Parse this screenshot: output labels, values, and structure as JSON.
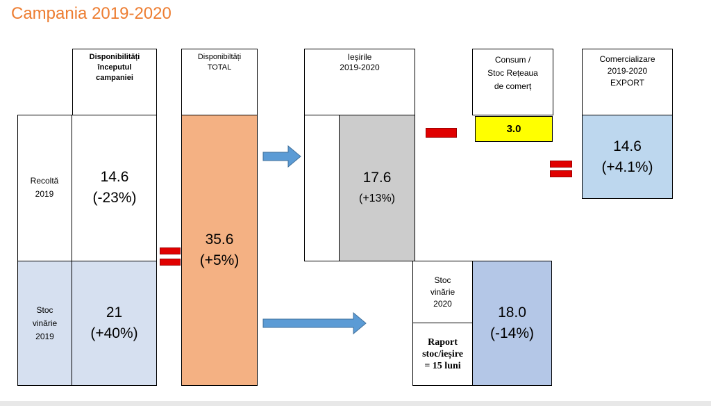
{
  "title": "Campania 2019-2020",
  "colors": {
    "title": "#ed7d31",
    "stock_blue": "#d6e0f0",
    "total_orange": "#f4b183",
    "outflow_gray": "#cccccc",
    "consumption_yellow": "#ffff00",
    "export_blue": "#bdd7ee",
    "stock2020_blue": "#b4c7e7",
    "arrow_blue": "#5b9bd5",
    "operator_red": "#e00000"
  },
  "headers": {
    "availability_start": [
      "Disponibilități",
      "începutul",
      "campaniei"
    ],
    "availability_total": [
      "Disponibiltăți",
      "TOTAL"
    ],
    "outflows": [
      "Ieșirile",
      "2019-2020"
    ],
    "consumption": [
      "Consum /",
      "Stoc Rețeaua",
      "de comerț"
    ],
    "export": [
      "Comercializare",
      "2019-2020",
      "EXPORT"
    ]
  },
  "rows": {
    "harvest": {
      "label": [
        "Recoltă",
        "2019"
      ],
      "value": "14.6",
      "change": "(-23%)"
    },
    "stock_2019": {
      "label": [
        "Stoc",
        "vinărie",
        "2019"
      ],
      "value": "21",
      "change": "(+40%)"
    }
  },
  "total": {
    "value": "35.6",
    "change": "(+5%)"
  },
  "outflows": {
    "value": "17.6",
    "change": "(+13%)"
  },
  "consumption": {
    "value": "3.0"
  },
  "export": {
    "value": "14.6",
    "change": "(+4.1%)"
  },
  "stock_2020": {
    "label": [
      "Stoc",
      "vinărie",
      "2020"
    ],
    "value": "18.0",
    "change": "(-14%)",
    "ratio": [
      "Raport",
      "stoc/ieșire",
      "= 15 luni"
    ]
  },
  "icons": {
    "arrow": "right-arrow-icon",
    "equals": "equals-icon",
    "minus": "minus-icon"
  }
}
